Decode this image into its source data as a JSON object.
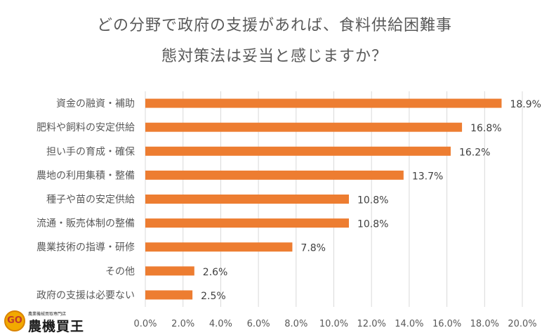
{
  "chart_data": {
    "type": "bar",
    "orientation": "horizontal",
    "title_lines": [
      "どの分野で政府の支援があれば、食料供給困難事",
      "態対策法は妥当と感じますか？"
    ],
    "categories": [
      "資金の融資・補助",
      "肥料や飼料の安定供給",
      "担い手の育成・確保",
      "農地の利用集積・整備",
      "種子や苗の安定供給",
      "流通・販売体制の整備",
      "農業技術の指導・研修",
      "その他",
      "政府の支援は必要ない"
    ],
    "values": [
      18.9,
      16.8,
      16.2,
      13.7,
      10.8,
      10.8,
      7.8,
      2.6,
      2.5
    ],
    "value_labels": [
      "18.9%",
      "16.8%",
      "16.2%",
      "13.7%",
      "10.8%",
      "10.8%",
      "7.8%",
      "2.6%",
      "2.5%"
    ],
    "xlim": [
      0,
      20
    ],
    "x_ticks": [
      "0.0%",
      "2.0%",
      "4.0%",
      "6.0%",
      "8.0%",
      "10.0%",
      "12.0%",
      "14.0%",
      "16.0%",
      "18.0%",
      "20.0%"
    ],
    "grid": true,
    "bar_color": "#ED7D31"
  },
  "logo": {
    "badge_text": "GO",
    "small_text": "農業機械買取専門店",
    "main_text": "農機買王"
  }
}
